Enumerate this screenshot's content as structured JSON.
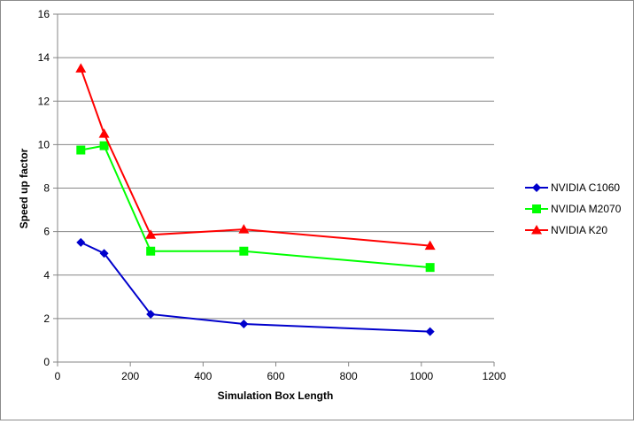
{
  "chart_data": {
    "type": "line",
    "title": "",
    "xlabel": "Simulation Box Length",
    "ylabel": "Speed up factor",
    "xlim": [
      0,
      1200
    ],
    "ylim": [
      0,
      16
    ],
    "xticks": [
      "0",
      "200",
      "400",
      "600",
      "800",
      "1000",
      "1200"
    ],
    "yticks": [
      "0",
      "2",
      "4",
      "6",
      "8",
      "10",
      "12",
      "14",
      "16"
    ],
    "grid": "horizontal",
    "legend_position": "right",
    "x": [
      64,
      128,
      256,
      512,
      1024
    ],
    "series": [
      {
        "name": "NVIDIA C1060",
        "color": "#0000CC",
        "marker": "diamond",
        "values": [
          5.5,
          5.0,
          2.2,
          1.75,
          1.4
        ]
      },
      {
        "name": "NVIDIA M2070",
        "color": "#00FF00",
        "marker": "square",
        "values": [
          9.75,
          9.95,
          5.1,
          5.1,
          4.35
        ]
      },
      {
        "name": "NVIDIA K20",
        "color": "#FF0000",
        "marker": "triangle",
        "values": [
          13.5,
          10.5,
          5.85,
          6.1,
          5.35
        ]
      }
    ]
  }
}
